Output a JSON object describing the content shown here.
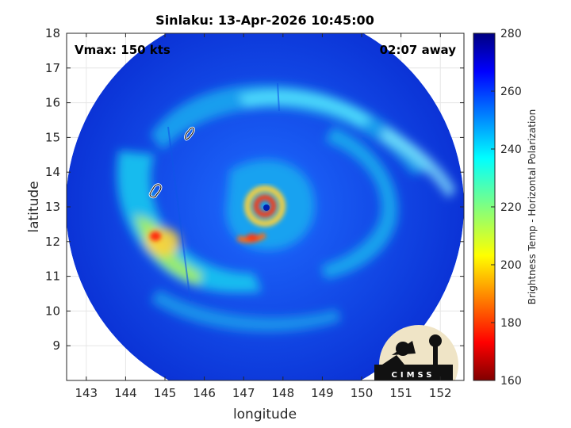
{
  "chart_data": {
    "type": "heatmap",
    "title": "Sinlaku: 13-Apr-2026 10:45:00",
    "xlabel": "longitude",
    "ylabel": "latitude",
    "xlim": [
      142.5,
      152.6
    ],
    "ylim": [
      8.0,
      18.0
    ],
    "xticks": [
      "143",
      "144",
      "145",
      "146",
      "147",
      "148",
      "149",
      "150",
      "151",
      "152"
    ],
    "yticks": [
      "18",
      "17",
      "16",
      "15",
      "14",
      "13",
      "12",
      "11",
      "10",
      "9"
    ],
    "grid": true,
    "annotations": {
      "vmax": "Vmax: 150 kts",
      "time_offset": "02:07 away"
    },
    "colorbar": {
      "label": "Brightness Temp - Horizontal Polarization",
      "range": [
        160,
        280
      ],
      "ticks": [
        "280",
        "260",
        "240",
        "220",
        "200",
        "180",
        "160"
      ],
      "colormap": "jet"
    },
    "storm_center": {
      "lon": 147.6,
      "lat": 13.0
    },
    "logo": {
      "text": "CIMSS"
    }
  }
}
